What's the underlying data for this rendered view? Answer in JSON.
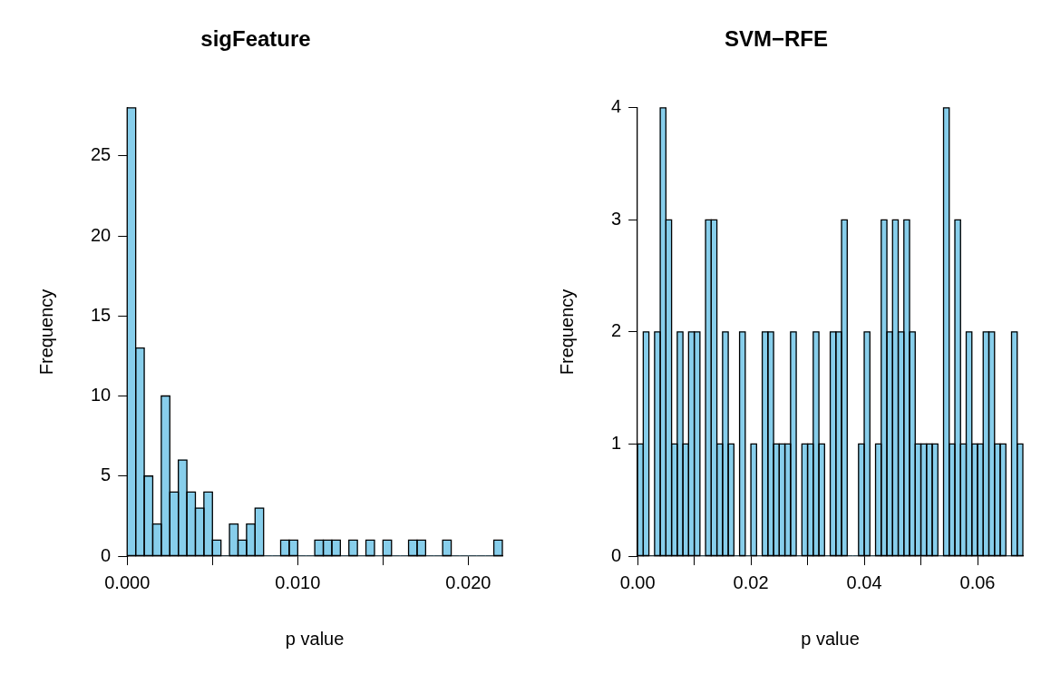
{
  "chart_data": [
    {
      "type": "histogram",
      "title": "sigFeature",
      "xlabel": "p value",
      "ylabel": "Frequency",
      "color": "#87ceeb",
      "bins": [
        0,
        0.0005,
        0.001,
        0.0015,
        0.002,
        0.0025,
        0.003,
        0.0035,
        0.004,
        0.0045,
        0.005,
        0.0055,
        0.006,
        0.0065,
        0.007,
        0.0075,
        0.008,
        0.0085,
        0.009,
        0.0095,
        0.01,
        0.0105,
        0.011,
        0.0115,
        0.012,
        0.0125,
        0.013,
        0.0135,
        0.014,
        0.0145,
        0.015,
        0.0155,
        0.016,
        0.0165,
        0.017,
        0.0175,
        0.018,
        0.0185,
        0.019,
        0.0195,
        0.02,
        0.0205,
        0.021,
        0.0215,
        0.022
      ],
      "values": [
        28,
        13,
        5,
        2,
        10,
        4,
        6,
        4,
        3,
        4,
        1,
        0,
        2,
        1,
        2,
        3,
        0,
        0,
        1,
        1,
        0,
        0,
        1,
        1,
        1,
        0,
        1,
        0,
        1,
        0,
        1,
        0,
        0,
        1,
        1,
        0,
        0,
        1,
        0,
        0,
        0,
        0,
        0,
        1
      ],
      "xlim": [
        0,
        0.022
      ],
      "ylim": [
        0,
        28
      ],
      "xticks": [
        {
          "value": 0,
          "label": "0.000"
        },
        {
          "value": 0.005,
          "label": null
        },
        {
          "value": 0.01,
          "label": "0.010"
        },
        {
          "value": 0.015,
          "label": null
        },
        {
          "value": 0.02,
          "label": "0.020"
        }
      ],
      "yticks": [
        0,
        5,
        10,
        15,
        20,
        25
      ]
    },
    {
      "type": "histogram",
      "title": "SVM−RFE",
      "xlabel": "p value",
      "ylabel": "Frequency",
      "color": "#87ceeb",
      "bins": [
        0,
        0.001,
        0.002,
        0.003,
        0.004,
        0.005,
        0.006,
        0.007,
        0.008,
        0.009,
        0.01,
        0.011,
        0.012,
        0.013,
        0.014,
        0.015,
        0.016,
        0.017,
        0.018,
        0.019,
        0.02,
        0.021,
        0.022,
        0.023,
        0.024,
        0.025,
        0.026,
        0.027,
        0.028,
        0.029,
        0.03,
        0.031,
        0.032,
        0.033,
        0.034,
        0.035,
        0.036,
        0.037,
        0.038,
        0.039,
        0.04,
        0.041,
        0.042,
        0.043,
        0.044,
        0.045,
        0.046,
        0.047,
        0.048,
        0.049,
        0.05,
        0.051,
        0.052,
        0.053,
        0.054,
        0.055,
        0.056,
        0.057,
        0.058,
        0.059,
        0.06,
        0.061,
        0.062,
        0.063,
        0.064,
        0.065,
        0.066,
        0.067,
        0.068
      ],
      "values": [
        1,
        2,
        0,
        2,
        4,
        3,
        1,
        2,
        1,
        2,
        2,
        0,
        3,
        3,
        1,
        2,
        1,
        0,
        2,
        0,
        1,
        0,
        2,
        2,
        1,
        1,
        1,
        2,
        0,
        1,
        1,
        2,
        1,
        0,
        2,
        2,
        3,
        0,
        0,
        1,
        2,
        0,
        1,
        3,
        2,
        3,
        2,
        3,
        2,
        1,
        1,
        1,
        1,
        0,
        4,
        1,
        3,
        1,
        2,
        1,
        1,
        2,
        2,
        1,
        1,
        0,
        2,
        1
      ],
      "xlim": [
        0,
        0.068
      ],
      "ylim": [
        0,
        4
      ],
      "xticks": [
        {
          "value": 0,
          "label": "0.00"
        },
        {
          "value": 0.01,
          "label": null
        },
        {
          "value": 0.02,
          "label": "0.02"
        },
        {
          "value": 0.03,
          "label": null
        },
        {
          "value": 0.04,
          "label": "0.04"
        },
        {
          "value": 0.05,
          "label": null
        },
        {
          "value": 0.06,
          "label": "0.06"
        }
      ],
      "yticks": [
        0,
        1,
        2,
        3,
        4
      ]
    }
  ]
}
